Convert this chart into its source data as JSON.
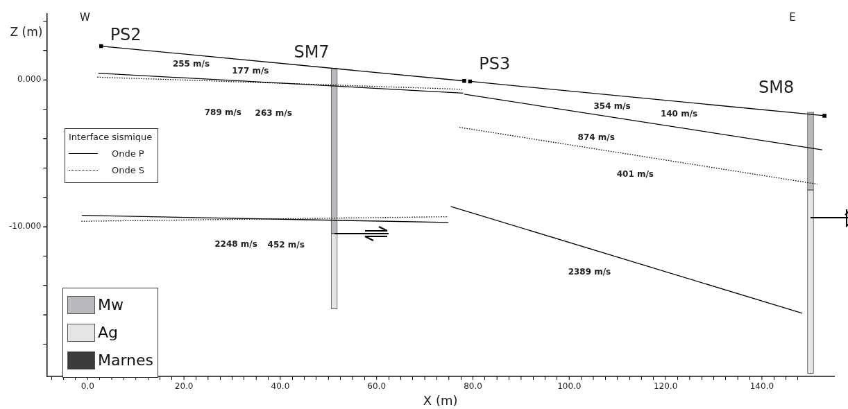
{
  "chart_data": {
    "type": "line",
    "xlabel": "X (m)",
    "ylabel": "Z (m)",
    "legend_title": "Interface sismique",
    "legend": "left",
    "grid": false,
    "xlim": [
      -8.5,
      155
    ],
    "ylim": [
      -20.2,
      4.5
    ],
    "xticks": [
      {
        "value": -5,
        "label": null
      },
      {
        "value": 0,
        "label": "0.0"
      },
      {
        "value": 5,
        "label": null
      },
      {
        "value": 10,
        "label": null
      },
      {
        "value": 15,
        "label": null
      },
      {
        "value": 20,
        "label": "20.0"
      },
      {
        "value": 25,
        "label": null
      },
      {
        "value": 30,
        "label": null
      },
      {
        "value": 35,
        "label": null
      },
      {
        "value": 40,
        "label": "40.0"
      },
      {
        "value": 45,
        "label": null
      },
      {
        "value": 50,
        "label": null
      },
      {
        "value": 55,
        "label": null
      },
      {
        "value": 60,
        "label": "60.0"
      },
      {
        "value": 65,
        "label": null
      },
      {
        "value": 70,
        "label": null
      },
      {
        "value": 75,
        "label": null
      },
      {
        "value": 80,
        "label": "80.0"
      },
      {
        "value": 85,
        "label": null
      },
      {
        "value": 90,
        "label": null
      },
      {
        "value": 95,
        "label": null
      },
      {
        "value": 100,
        "label": "100.0"
      },
      {
        "value": 105,
        "label": null
      },
      {
        "value": 110,
        "label": null
      },
      {
        "value": 115,
        "label": null
      },
      {
        "value": 120,
        "label": "120.0"
      },
      {
        "value": 125,
        "label": null
      },
      {
        "value": 130,
        "label": null
      },
      {
        "value": 135,
        "label": null
      },
      {
        "value": 140,
        "label": "140.0"
      },
      {
        "value": 145,
        "label": null
      }
    ],
    "yticks": [
      {
        "value": 4,
        "label": null
      },
      {
        "value": 2,
        "label": null
      },
      {
        "value": 0,
        "label": "0.000"
      },
      {
        "value": -2,
        "label": null
      },
      {
        "value": -4,
        "label": null
      },
      {
        "value": -6,
        "label": null
      },
      {
        "value": -8,
        "label": null
      },
      {
        "value": -10,
        "label": "-10.000"
      },
      {
        "value": -12,
        "label": null
      },
      {
        "value": -14,
        "label": null
      },
      {
        "value": -16,
        "label": null
      },
      {
        "value": -18,
        "label": null
      }
    ],
    "series": [
      {
        "color": "#000000",
        "marker": "square",
        "line_style": "solid",
        "x": [
          2.8,
          78.2
        ],
        "values": [
          2.3,
          -0.07
        ]
      },
      {
        "color": "#000000",
        "marker": "square",
        "line_style": "solid",
        "x": [
          79.4,
          153
        ],
        "values": [
          -0.1,
          -2.44
        ]
      },
      {
        "name": "Onde P",
        "color": "#000000",
        "line_style": "solid",
        "x": [
          2.2,
          78
        ],
        "values": [
          0.46,
          -0.9
        ]
      },
      {
        "color": "#000000",
        "line_style": "solid",
        "x": [
          78.2,
          152.5
        ],
        "values": [
          -0.97,
          -4.76
        ]
      },
      {
        "color": "#000000",
        "line_style": "solid",
        "x": [
          -1.2,
          74.9
        ],
        "values": [
          -9.23,
          -9.71
        ]
      },
      {
        "color": "#000000",
        "line_style": "solid",
        "x": [
          75.4,
          148.4
        ],
        "values": [
          -8.62,
          -15.9
        ]
      },
      {
        "name": "Onde S",
        "color": "#000000",
        "line_style": "dotted",
        "x": [
          2.0,
          77.8
        ],
        "values": [
          0.19,
          -0.64
        ]
      },
      {
        "color": "#000000",
        "line_style": "dotted",
        "x": [
          77.2,
          151.5
        ],
        "values": [
          -3.23,
          -7.1
        ]
      },
      {
        "color": "#000000",
        "line_style": "dotted",
        "x": [
          -1.3,
          74.9
        ],
        "values": [
          -9.63,
          -9.32
        ]
      },
      {
        "type": "bar",
        "name": "Mw",
        "color": "#b9babe",
        "x": [
          51.2,
          150.1
        ],
        "base": [
          -10.46,
          -7.5
        ],
        "values": [
          11.26,
          5.3
        ]
      },
      {
        "type": "bar",
        "name": "Ag",
        "color": "#e4e5e7",
        "x": [
          51.2,
          150.1
        ],
        "base": [
          -15.6,
          -20.0
        ],
        "values": [
          5.14,
          12.5
        ]
      },
      {
        "type": "bar",
        "name": "Marnes",
        "color": "#3c3c3c"
      }
    ],
    "annotations": [
      "W",
      "E",
      "PS2",
      "SM7",
      "PS3",
      "SM8",
      "255 m/s",
      "177 m/s",
      "789 m/s",
      "263 m/s",
      "2248 m/s",
      "452 m/s",
      "354 m/s",
      "140 m/s",
      "874 m/s",
      "401 m/s",
      "2389 m/s"
    ]
  }
}
